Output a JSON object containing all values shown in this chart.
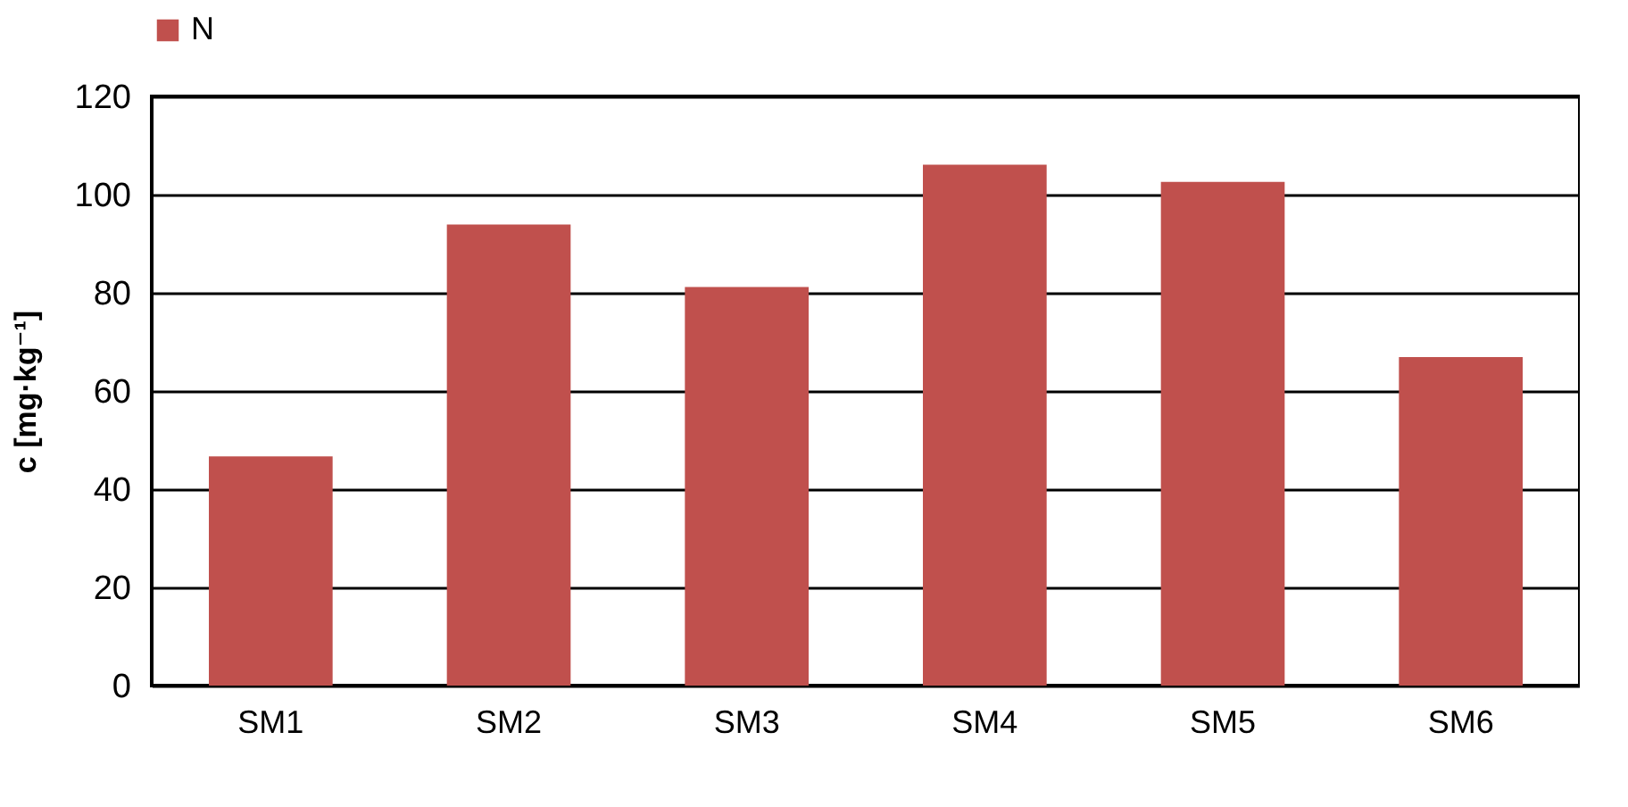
{
  "chart_data": {
    "type": "bar",
    "ylabel": "c [mg·kg⁻¹]",
    "categories": [
      "SM1",
      "SM2",
      "SM3",
      "SM4",
      "SM5",
      "SM6"
    ],
    "series": [
      {
        "name": "N",
        "color": "#c0504d",
        "values": [
          46.7,
          93.9,
          81.2,
          106.1,
          102.6,
          66.9
        ]
      }
    ],
    "ylim": [
      0,
      120
    ],
    "yticks": [
      0,
      20,
      40,
      60,
      80,
      100,
      120
    ],
    "grid": "y",
    "legend": "top"
  }
}
